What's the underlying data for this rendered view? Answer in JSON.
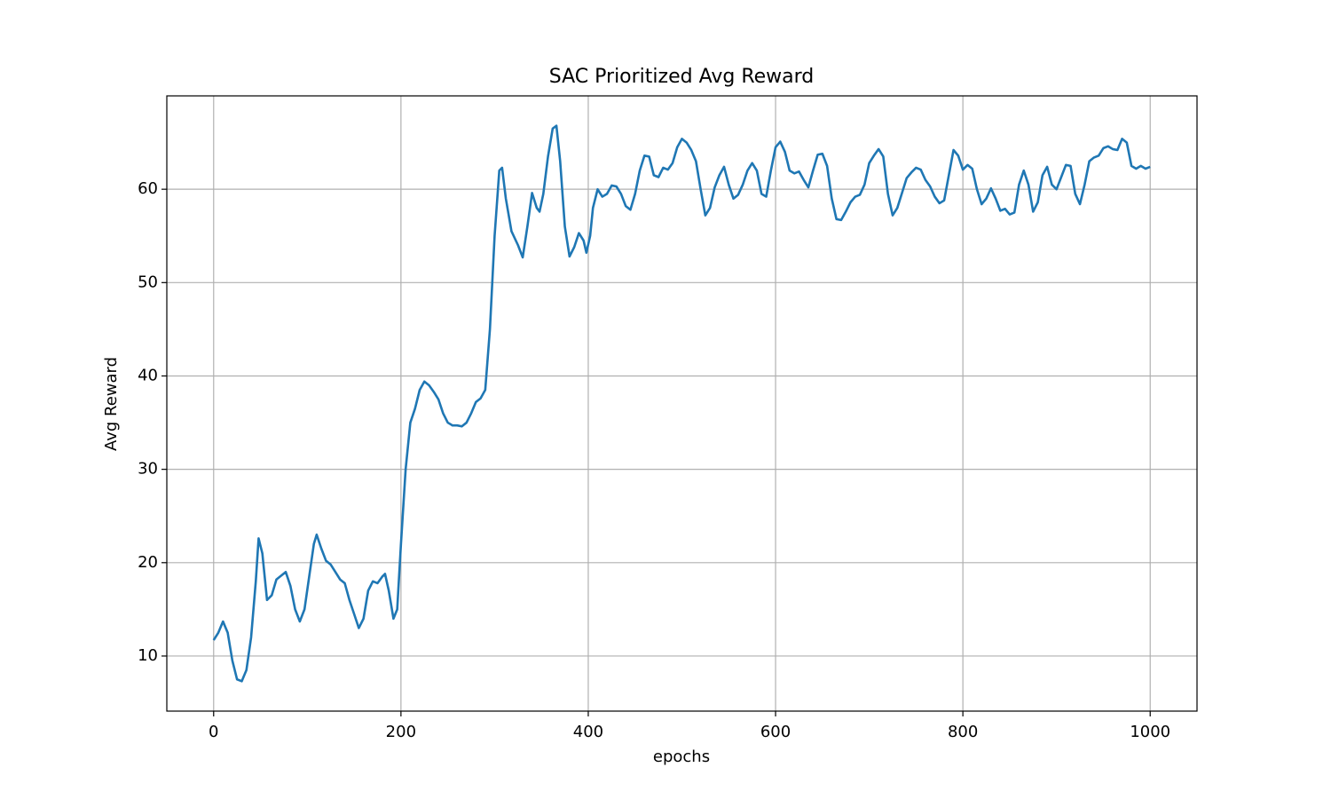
{
  "chart_data": {
    "type": "line",
    "title": "SAC Prioritized Avg Reward",
    "x_label": "epochs",
    "y_label": "Avg Reward",
    "x": [
      0,
      5,
      10,
      15,
      20,
      25,
      30,
      35,
      40,
      45,
      48,
      52,
      57,
      62,
      67,
      72,
      77,
      82,
      87,
      92,
      97,
      102,
      107,
      110,
      115,
      120,
      125,
      130,
      135,
      140,
      145,
      150,
      155,
      160,
      165,
      170,
      175,
      180,
      183,
      187,
      192,
      196,
      200,
      205,
      210,
      215,
      220,
      225,
      230,
      235,
      240,
      245,
      250,
      255,
      260,
      265,
      270,
      275,
      280,
      285,
      290,
      295,
      300,
      305,
      308,
      312,
      318,
      325,
      330,
      335,
      340,
      345,
      348,
      352,
      357,
      362,
      366,
      370,
      375,
      380,
      385,
      390,
      395,
      398,
      402,
      405,
      410,
      415,
      420,
      425,
      430,
      435,
      440,
      445,
      450,
      455,
      460,
      465,
      470,
      475,
      480,
      485,
      490,
      495,
      500,
      505,
      510,
      515,
      520,
      525,
      530,
      535,
      540,
      545,
      550,
      555,
      560,
      565,
      570,
      575,
      580,
      585,
      590,
      595,
      600,
      605,
      610,
      615,
      620,
      625,
      630,
      635,
      640,
      645,
      650,
      655,
      660,
      665,
      670,
      675,
      680,
      685,
      690,
      695,
      700,
      705,
      710,
      715,
      720,
      725,
      730,
      735,
      740,
      745,
      750,
      755,
      760,
      765,
      770,
      775,
      780,
      785,
      790,
      795,
      800,
      805,
      810,
      815,
      820,
      825,
      830,
      835,
      840,
      845,
      850,
      855,
      860,
      865,
      870,
      875,
      880,
      885,
      890,
      895,
      900,
      905,
      910,
      915,
      920,
      925,
      930,
      935,
      940,
      945,
      950,
      955,
      960,
      965,
      970,
      975,
      980,
      985,
      990,
      995,
      1000
    ],
    "values": [
      11.7,
      12.5,
      13.7,
      12.5,
      9.5,
      7.5,
      7.3,
      8.5,
      12,
      18,
      22.6,
      21,
      16,
      16.5,
      18.2,
      18.6,
      19,
      17.5,
      15,
      13.7,
      15,
      18.5,
      22,
      23,
      21.5,
      20.2,
      19.8,
      19,
      18.2,
      17.8,
      16,
      14.5,
      13,
      14,
      17,
      18,
      17.8,
      18.5,
      18.8,
      17,
      14,
      15,
      22,
      30,
      35,
      36.5,
      38.5,
      39.4,
      39,
      38.3,
      37.5,
      36,
      35,
      34.7,
      34.7,
      34.6,
      35,
      36,
      37.2,
      37.6,
      38.5,
      45,
      55,
      62,
      62.3,
      59,
      55.5,
      54,
      52.7,
      56,
      59.6,
      58,
      57.6,
      59.5,
      63.5,
      66.5,
      66.8,
      63,
      56,
      52.8,
      53.8,
      55.3,
      54.5,
      53.2,
      55,
      58,
      60,
      59.2,
      59.5,
      60.4,
      60.3,
      59.5,
      58.2,
      57.8,
      59.5,
      62,
      63.6,
      63.5,
      61.5,
      61.3,
      62.3,
      62.1,
      62.8,
      64.5,
      65.4,
      65,
      64.2,
      63,
      60,
      57.2,
      58,
      60.2,
      61.5,
      62.4,
      60.5,
      59,
      59.4,
      60.5,
      62,
      62.8,
      62,
      59.5,
      59.2,
      62,
      64.5,
      65.1,
      64,
      62,
      61.7,
      61.9,
      61,
      60.2,
      62,
      63.7,
      63.8,
      62.5,
      59,
      56.8,
      56.7,
      57.6,
      58.6,
      59.2,
      59.4,
      60.5,
      62.8,
      63.6,
      64.3,
      63.5,
      59.5,
      57.2,
      58,
      59.6,
      61.2,
      61.8,
      62.3,
      62.1,
      61,
      60.3,
      59.2,
      58.5,
      58.8,
      61.5,
      64.2,
      63.6,
      62.1,
      62.6,
      62.2,
      60,
      58.4,
      59,
      60.1,
      59,
      57.7,
      57.9,
      57.3,
      57.5,
      60.5,
      62,
      60.5,
      57.6,
      58.6,
      61.5,
      62.4,
      60.5,
      60,
      61.3,
      62.6,
      62.5,
      59.5,
      58.4,
      60.5,
      63,
      63.4,
      63.6,
      64.4,
      64.6,
      64.3,
      64.2,
      65.4,
      65,
      62.5,
      62.2,
      62.5,
      62.2,
      62.4
    ],
    "color": "#1f77b4",
    "xlim": [
      -50,
      1050
    ],
    "xticks": [
      0,
      200,
      400,
      600,
      800,
      1000
    ],
    "ylim": [
      4.1,
      70
    ],
    "yticks": [
      10,
      20,
      30,
      40,
      50,
      60
    ],
    "grid": true
  }
}
